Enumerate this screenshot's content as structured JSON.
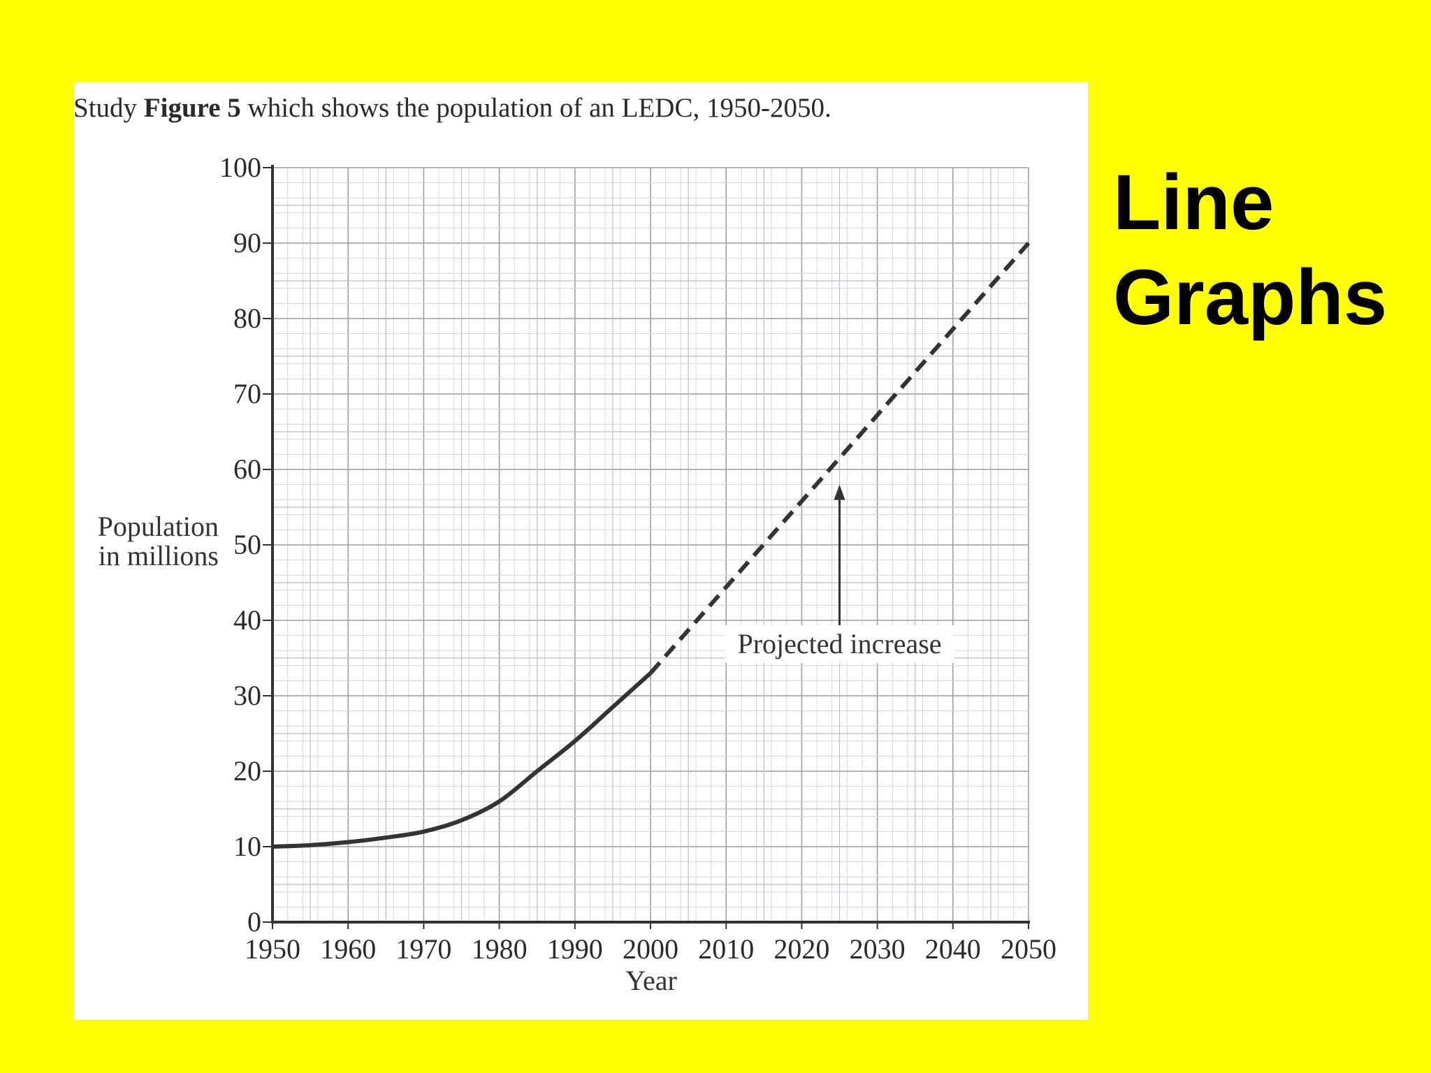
{
  "slide": {
    "title_line1": "Line",
    "title_line2": "Graphs",
    "background": "#ffff00"
  },
  "figure": {
    "intro_prefix": "Study ",
    "intro_bold": "Figure 5",
    "intro_suffix": " which shows the population of an LEDC, 1950-2050.",
    "ylabel_line1": "Population",
    "ylabel_line2": "in millions",
    "xlabel": "Year",
    "annotation": "Projected increase"
  },
  "chart_data": {
    "type": "line",
    "title": "",
    "xlabel": "Year",
    "ylabel": "Population in millions",
    "xlim": [
      1950,
      2050
    ],
    "ylim": [
      0,
      100
    ],
    "xticks": [
      1950,
      1960,
      1970,
      1980,
      1990,
      2000,
      2010,
      2020,
      2030,
      2040,
      2050
    ],
    "yticks": [
      0,
      10,
      20,
      30,
      40,
      50,
      60,
      70,
      80,
      90,
      100
    ],
    "grid": true,
    "series": [
      {
        "style": "solid",
        "color": "#333333",
        "x": [
          1950,
          1955,
          1960,
          1965,
          1970,
          1975,
          1980,
          1985,
          1990,
          1995,
          2000
        ],
        "y": [
          10,
          10.2,
          10.6,
          11.2,
          12,
          13.5,
          16,
          20,
          24,
          28.5,
          33
        ]
      },
      {
        "style": "dashed",
        "color": "#333333",
        "x": [
          2000,
          2050
        ],
        "y": [
          33,
          90
        ]
      }
    ],
    "annotations": [
      {
        "text": "Projected increase",
        "arrow_to": [
          2025,
          58
        ]
      }
    ]
  }
}
